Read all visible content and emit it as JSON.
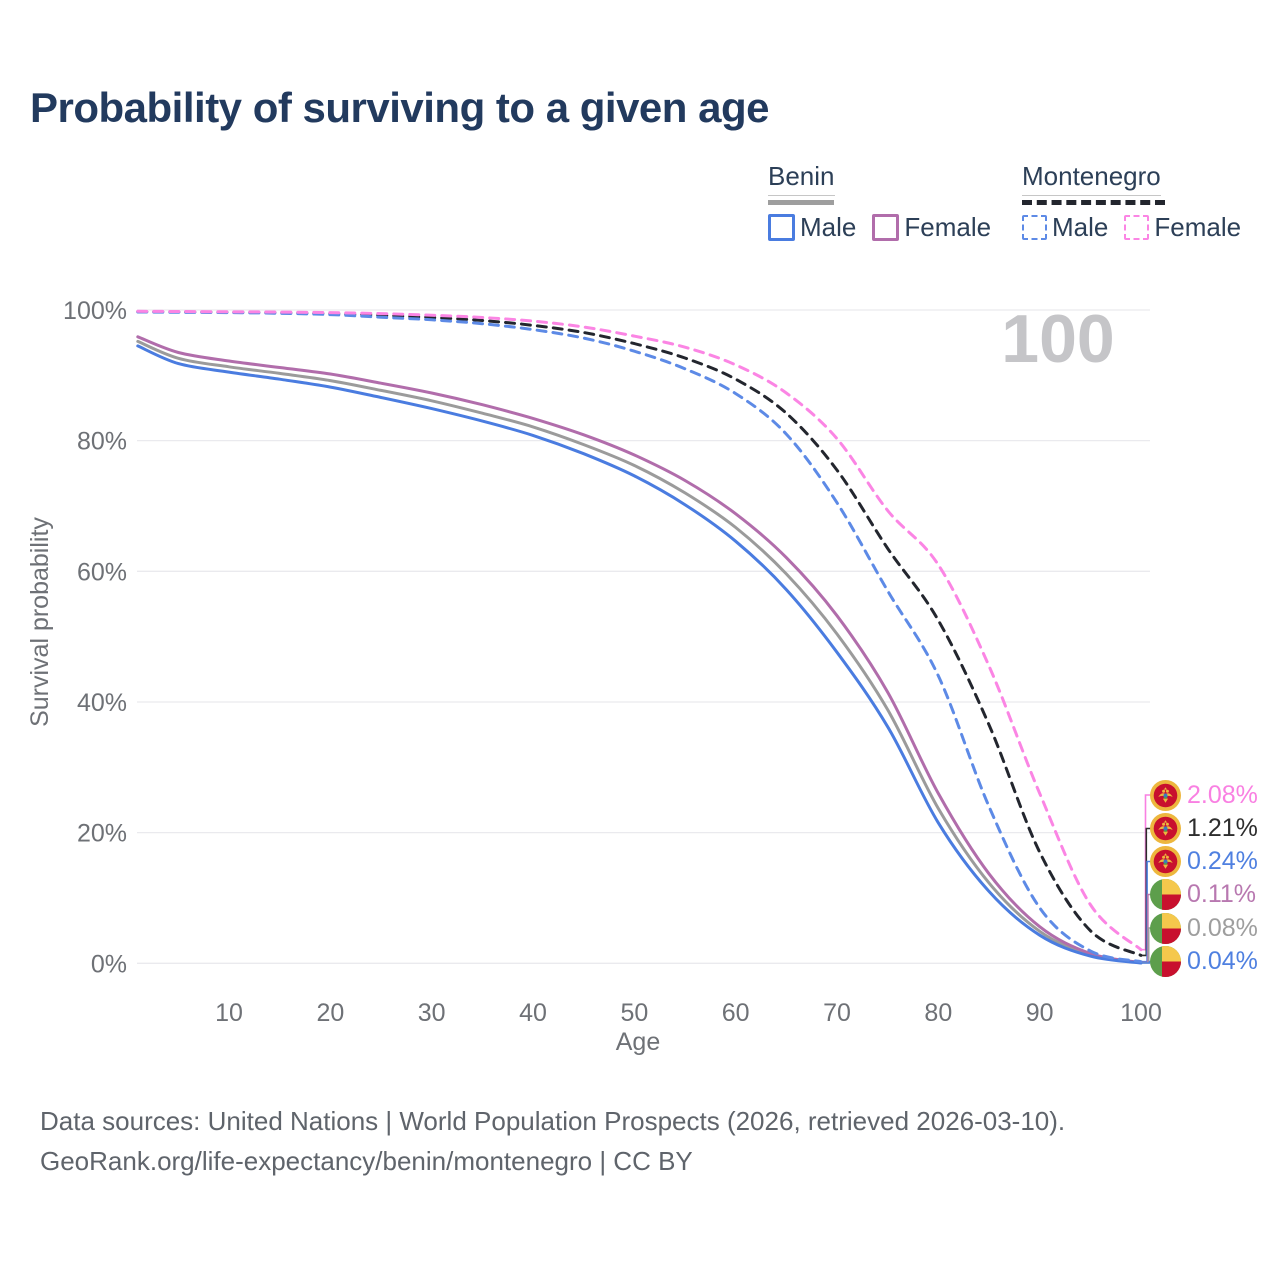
{
  "title": "Probability of surviving to a given age",
  "watermark": "100",
  "legend": {
    "groups": [
      {
        "name": "Benin",
        "line_style": "solid",
        "sample_color": "#9e9e9e",
        "items": [
          {
            "label": "Male",
            "color": "#4a7ce0"
          },
          {
            "label": "Female",
            "color": "#b16dab"
          }
        ]
      },
      {
        "name": "Montenegro",
        "line_style": "dashed",
        "sample_color": "#23262e",
        "items": [
          {
            "label": "Male",
            "color": "#5d8ae6"
          },
          {
            "label": "Female",
            "color": "#fb85e4"
          }
        ]
      }
    ]
  },
  "chart_data": {
    "type": "line",
    "title": "Probability of surviving to a given age",
    "xlabel": "Age",
    "ylabel": "Survival probability",
    "xlim": [
      1,
      100
    ],
    "ylim": [
      0,
      100
    ],
    "grid": true,
    "x_ticks": [
      10,
      20,
      30,
      40,
      50,
      60,
      70,
      80,
      90,
      100
    ],
    "y_tick_labels": [
      "0%",
      "20%",
      "40%",
      "60%",
      "80%",
      "100%"
    ],
    "y_tick_values": [
      0,
      20,
      40,
      60,
      80,
      100
    ],
    "age_frame_watermark": "100",
    "x": [
      1,
      5,
      10,
      15,
      20,
      25,
      30,
      35,
      40,
      45,
      50,
      55,
      60,
      65,
      70,
      75,
      80,
      85,
      90,
      95,
      100
    ],
    "series": [
      {
        "id": "benin-total",
        "name": "Benin",
        "color": "#9b9b9b",
        "dash": "solid",
        "values": [
          95.2,
          92.6,
          91.3,
          90.3,
          89.2,
          87.7,
          86.1,
          84.2,
          82.1,
          79.4,
          76.2,
          72.0,
          66.7,
          59.6,
          50.4,
          38.8,
          23.7,
          12.3,
          4.9,
          1.3,
          0.08
        ]
      },
      {
        "id": "benin-female",
        "name": "Benin Female",
        "color": "#b16dab",
        "dash": "solid",
        "values": [
          95.9,
          93.5,
          92.2,
          91.2,
          90.2,
          88.8,
          87.3,
          85.5,
          83.4,
          80.9,
          77.8,
          73.9,
          68.8,
          62.1,
          53.2,
          41.5,
          26.0,
          13.7,
          5.6,
          1.5,
          0.11
        ]
      },
      {
        "id": "benin-male",
        "name": "Benin Male",
        "color": "#4a7ce0",
        "dash": "solid",
        "values": [
          94.5,
          91.8,
          90.5,
          89.4,
          88.2,
          86.6,
          84.9,
          83.0,
          80.8,
          78.0,
          74.6,
          70.2,
          64.6,
          57.2,
          47.6,
          36.2,
          21.5,
          11.0,
          4.3,
          1.1,
          0.04
        ]
      },
      {
        "id": "montenegro-total",
        "name": "Montenegro",
        "color": "#23262e",
        "dash": "dashed",
        "values": [
          99.75,
          99.71,
          99.67,
          99.6,
          99.45,
          99.18,
          98.85,
          98.4,
          97.65,
          96.55,
          94.85,
          92.65,
          89.4,
          84.2,
          75.5,
          63.5,
          52.5,
          36.5,
          17.0,
          5.0,
          1.21
        ]
      },
      {
        "id": "montenegro-male",
        "name": "Montenegro Male",
        "color": "#5d8ae6",
        "dash": "dashed",
        "values": [
          99.7,
          99.65,
          99.6,
          99.5,
          99.3,
          98.9,
          98.5,
          97.9,
          97.0,
          95.7,
          93.7,
          91.0,
          87.2,
          81.0,
          70.5,
          57.0,
          44.0,
          24.0,
          8.5,
          1.9,
          0.24
        ]
      },
      {
        "id": "montenegro-female",
        "name": "Montenegro Female",
        "color": "#fb85e4",
        "dash": "dashed",
        "values": [
          99.8,
          99.77,
          99.73,
          99.68,
          99.6,
          99.45,
          99.2,
          98.85,
          98.3,
          97.4,
          96.0,
          94.3,
          91.6,
          87.3,
          80.3,
          69.3,
          61.0,
          45.5,
          26.0,
          9.0,
          2.08
        ]
      }
    ],
    "legend_position": "top-right"
  },
  "end_labels": [
    {
      "value": "2.08%",
      "series": "montenegro-female",
      "flag": "montenegro",
      "color": "#f980e2"
    },
    {
      "value": "1.21%",
      "series": "montenegro-total",
      "flag": "montenegro",
      "color": "#2d2d2d"
    },
    {
      "value": "0.24%",
      "series": "montenegro-male",
      "flag": "montenegro",
      "color": "#4f80e0"
    },
    {
      "value": "0.11%",
      "series": "benin-female",
      "flag": "benin",
      "color": "#b878b0"
    },
    {
      "value": "0.08%",
      "series": "benin-total",
      "flag": "benin",
      "color": "#9e9e9e"
    },
    {
      "value": "0.04%",
      "series": "benin-male",
      "flag": "benin",
      "color": "#4f80e0"
    }
  ],
  "colors": {
    "gridline": "#eaeaee",
    "tick_text": "#6e7176",
    "watermark": "#c5c5c8",
    "title_text": "#223a5e"
  },
  "footer": {
    "line1": "Data sources: United Nations | World Population Prospects (2026, retrieved 2026-03-10).",
    "line2": "GeoRank.org/life-expectancy/benin/montenegro | CC BY"
  }
}
